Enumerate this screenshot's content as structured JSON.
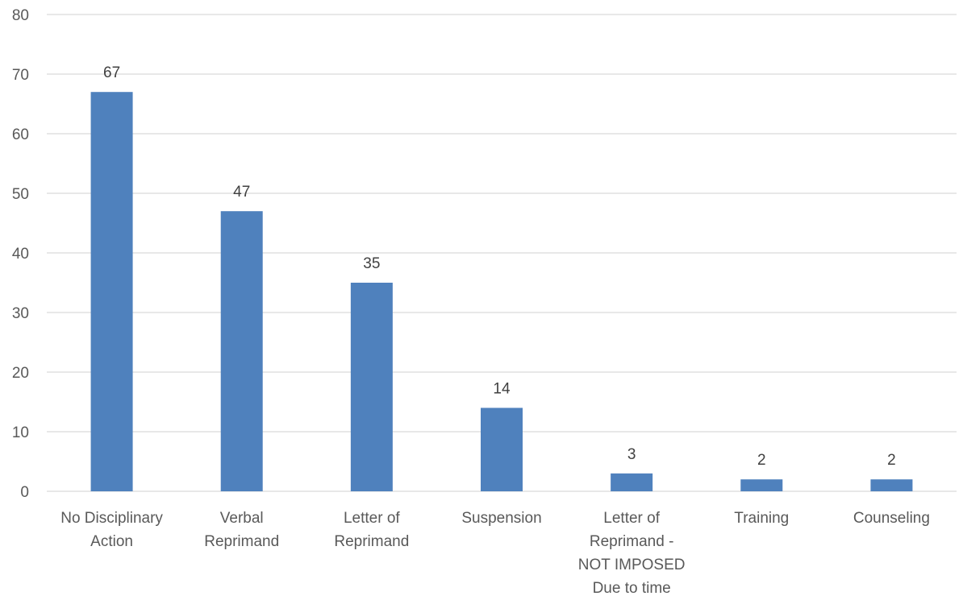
{
  "chart_data": {
    "type": "bar",
    "categories": [
      [
        "No Disciplinary",
        "Action"
      ],
      [
        "Verbal",
        "Reprimand"
      ],
      [
        "Letter of",
        "Reprimand"
      ],
      [
        "Suspension"
      ],
      [
        "Letter of",
        "Reprimand -",
        "NOT IMPOSED",
        "Due to time"
      ],
      [
        "Training"
      ],
      [
        "Counseling"
      ]
    ],
    "values": [
      67,
      47,
      35,
      14,
      3,
      2,
      2
    ],
    "ylim": [
      0,
      80
    ],
    "yticks": [
      0,
      10,
      20,
      30,
      40,
      50,
      60,
      70,
      80
    ],
    "grid": true,
    "data_labels": true,
    "bar_color": "#4f81bd"
  }
}
